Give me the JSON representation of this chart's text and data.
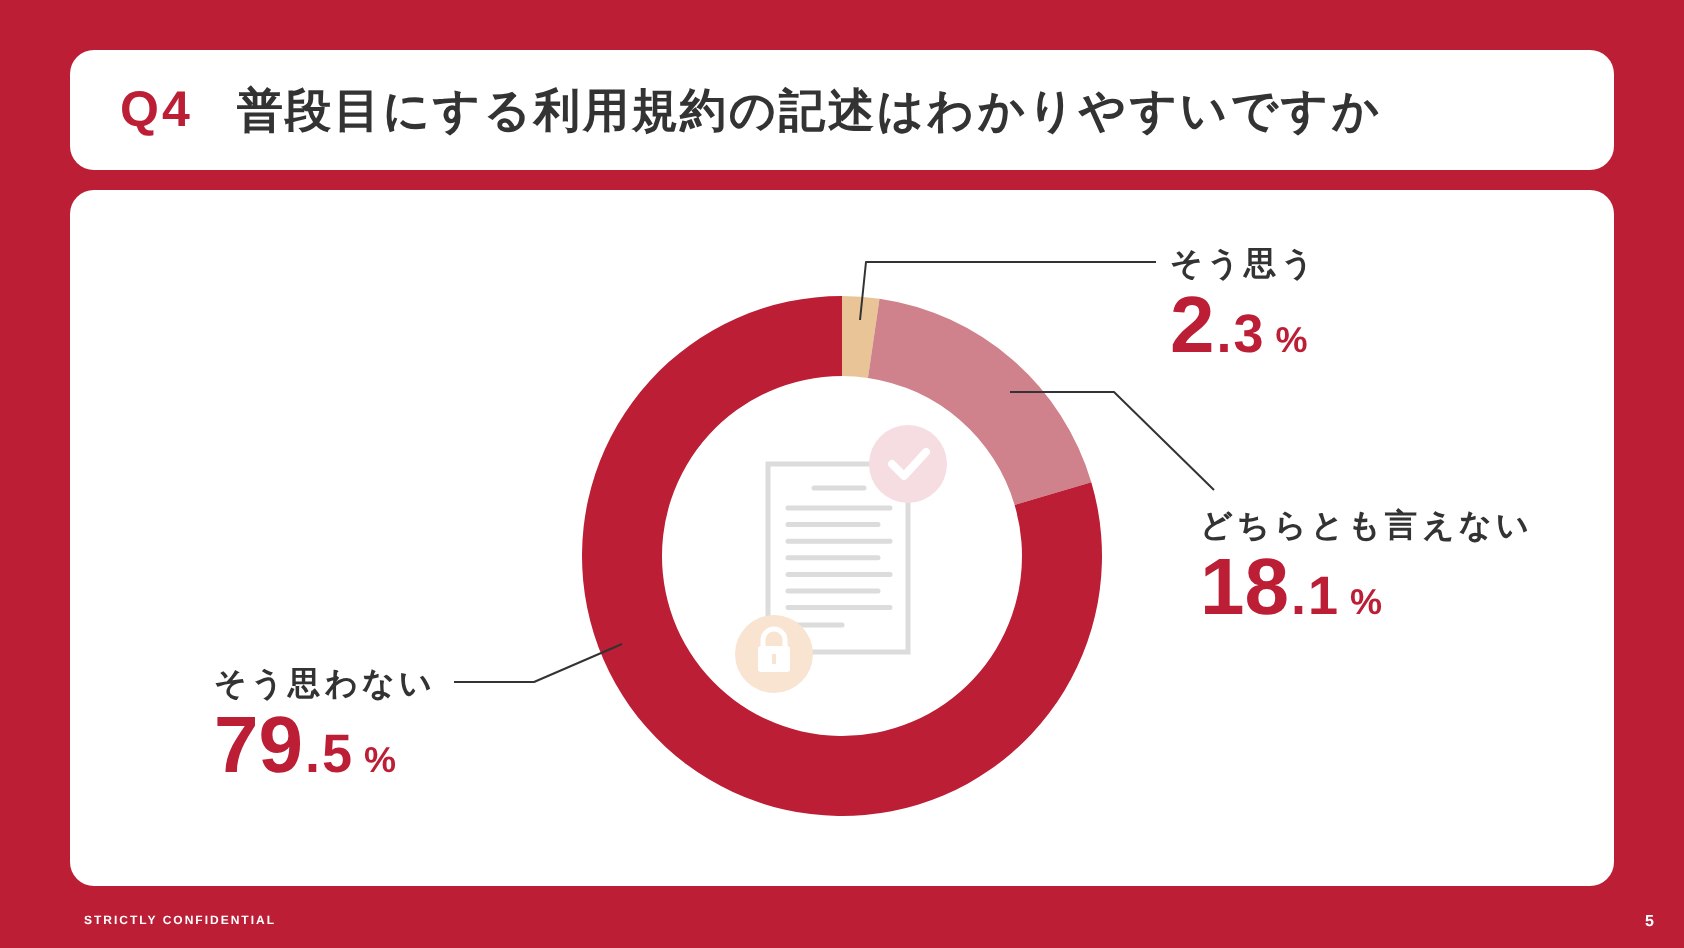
{
  "chart_data": {
    "type": "donut",
    "title": "Q4 普段目にする利用規約の記述はわかりやすいですか",
    "categories": [
      "そう思う",
      "どちらとも言えない",
      "そう思わない"
    ],
    "values": [
      2.3,
      18.1,
      79.5
    ],
    "colors": [
      "#e8c496",
      "#cf828b",
      "#bb1e35"
    ],
    "value_labels": [
      "2.3%",
      "18.1%",
      "79.5%"
    ],
    "annotations": [
      "STRICTLY CONFIDENTIAL",
      "5"
    ]
  }
}
